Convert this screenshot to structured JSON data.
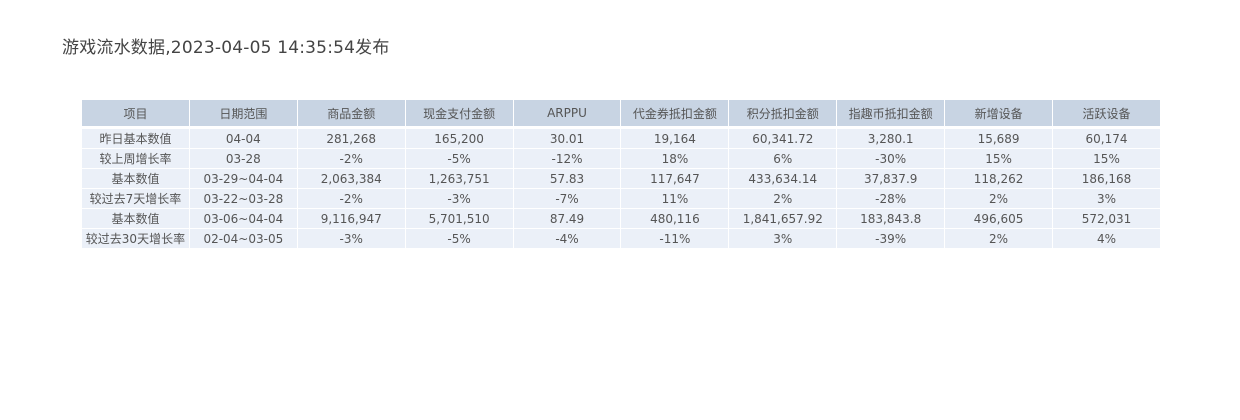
{
  "title": "游戏流水数据,2023-04-05 14:35:54发布",
  "colors": {
    "header_bg": "#c8d4e3",
    "cell_bg": "#ebf0f8",
    "text": "#555555"
  },
  "chart_data": {
    "type": "table",
    "title": "游戏流水数据,2023-04-05 14:35:54发布",
    "columns": [
      "项目",
      "日期范围",
      "商品金额",
      "现金支付金额",
      "ARPPU",
      "代金券抵扣金额",
      "积分抵扣金额",
      "指趣币抵扣金额",
      "新增设备",
      "活跃设备"
    ],
    "rows": [
      [
        "昨日基本数值",
        "04-04",
        "281,268",
        "165,200",
        "30.01",
        "19,164",
        "60,341.72",
        "3,280.1",
        "15,689",
        "60,174"
      ],
      [
        "较上周增长率",
        "03-28",
        "-2%",
        "-5%",
        "-12%",
        "18%",
        "6%",
        "-30%",
        "15%",
        "15%"
      ],
      [
        "基本数值",
        "03-29~04-04",
        "2,063,384",
        "1,263,751",
        "57.83",
        "117,647",
        "433,634.14",
        "37,837.9",
        "118,262",
        "186,168"
      ],
      [
        "较过去7天增长率",
        "03-22~03-28",
        "-2%",
        "-3%",
        "-7%",
        "11%",
        "2%",
        "-28%",
        "2%",
        "3%"
      ],
      [
        "基本数值",
        "03-06~04-04",
        "9,116,947",
        "5,701,510",
        "87.49",
        "480,116",
        "1,841,657.92",
        "183,843.8",
        "496,605",
        "572,031"
      ],
      [
        "较过去30天增长率",
        "02-04~03-05",
        "-3%",
        "-5%",
        "-4%",
        "-11%",
        "3%",
        "-39%",
        "2%",
        "4%"
      ]
    ]
  }
}
